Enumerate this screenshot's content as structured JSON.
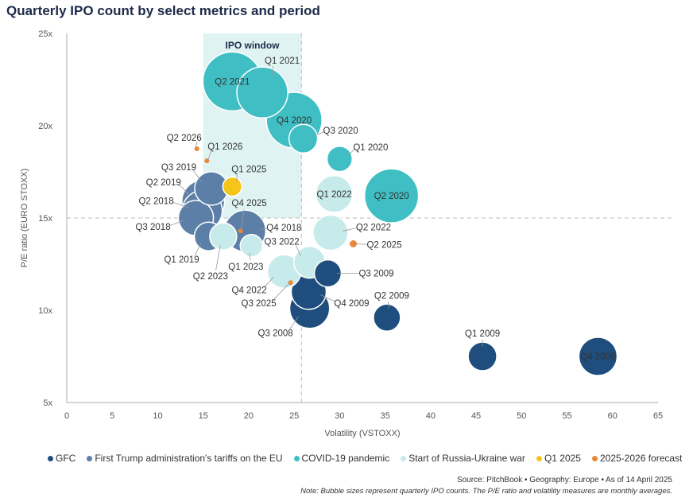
{
  "chart_data": {
    "type": "scatter",
    "title": "Quarterly IPO count by select metrics and period",
    "xlabel": "Volatility (VSTOXX)",
    "ylabel": "P/E ratio (EURO STOXX)",
    "xlim": [
      0,
      65
    ],
    "ylim": [
      5,
      25
    ],
    "xticks": [
      "0",
      "5",
      "10",
      "15",
      "20",
      "25",
      "30",
      "35",
      "40",
      "45",
      "50",
      "55",
      "60",
      "65"
    ],
    "yticks": [
      "5x",
      "10x",
      "15x",
      "20x",
      "25x"
    ],
    "annotation": "IPO window",
    "ipo_window": {
      "x": [
        15,
        25.8
      ],
      "y": [
        15,
        25
      ]
    },
    "reference_lines": {
      "x": 25.8,
      "y": 15
    },
    "series": [
      {
        "name": "GFC",
        "color": "#1f4e7e",
        "points": [
          {
            "label": "Q3 2008",
            "x": 26.7,
            "y": 10.1,
            "size": 70
          },
          {
            "label": "Q4 2008",
            "x": 58.4,
            "y": 7.5,
            "size": 64
          },
          {
            "label": "Q1 2009",
            "x": 45.7,
            "y": 7.5,
            "size": 36
          },
          {
            "label": "Q2 2009",
            "x": 35.2,
            "y": 9.6,
            "size": 32
          },
          {
            "label": "Q3 2009",
            "x": 28.7,
            "y": 12.0,
            "size": 32
          },
          {
            "label": "Q4 2009",
            "x": 26.6,
            "y": 11.0,
            "size": 54
          }
        ]
      },
      {
        "name": "First Trump administration's tariffs on the EU",
        "color": "#5b7fa6",
        "points": [
          {
            "label": "Q2 2018",
            "x": 14.9,
            "y": 15.4,
            "size": 70
          },
          {
            "label": "Q3 2018",
            "x": 14.2,
            "y": 15.0,
            "size": 54
          },
          {
            "label": "Q4 2018",
            "x": 19.6,
            "y": 14.3,
            "size": 75
          },
          {
            "label": "Q1 2019",
            "x": 15.6,
            "y": 14.0,
            "size": 36
          },
          {
            "label": "Q2 2019",
            "x": 15.0,
            "y": 15.9,
            "size": 80
          },
          {
            "label": "Q3 2019",
            "x": 15.9,
            "y": 16.6,
            "size": 49
          }
        ]
      },
      {
        "name": "COVID-19 pandemic",
        "color": "#3fbfc4",
        "points": [
          {
            "label": "Q1 2020",
            "x": 30.0,
            "y": 18.2,
            "size": 28
          },
          {
            "label": "Q2 2020",
            "x": 35.7,
            "y": 16.2,
            "size": 128
          },
          {
            "label": "Q3 2020",
            "x": 26.0,
            "y": 19.3,
            "size": 36
          },
          {
            "label": "Q4 2020",
            "x": 25.0,
            "y": 20.3,
            "size": 136
          },
          {
            "label": "Q1 2021",
            "x": 21.5,
            "y": 21.8,
            "size": 114
          },
          {
            "label": "Q2 2021",
            "x": 18.2,
            "y": 22.4,
            "size": 152
          }
        ]
      },
      {
        "name": "Start of Russia-Ukraine war",
        "color": "#c6ebea",
        "points": [
          {
            "label": "Q1 2022",
            "x": 29.4,
            "y": 16.3,
            "size": 59
          },
          {
            "label": "Q2 2022",
            "x": 29.0,
            "y": 14.2,
            "size": 54
          },
          {
            "label": "Q3 2022",
            "x": 26.7,
            "y": 12.6,
            "size": 44
          },
          {
            "label": "Q4 2022",
            "x": 23.9,
            "y": 12.1,
            "size": 49
          },
          {
            "label": "Q1 2023",
            "x": 20.3,
            "y": 13.5,
            "size": 22
          },
          {
            "label": "Q2 2023",
            "x": 17.2,
            "y": 14.0,
            "size": 32
          }
        ]
      },
      {
        "name": "Q1 2025",
        "color": "#f5c518",
        "points": [
          {
            "label": "Q1 2025",
            "x": 18.2,
            "y": 16.7,
            "size": 16
          }
        ]
      },
      {
        "name": "2025-2026 forecast",
        "color": "#e8883a",
        "points": [
          {
            "label": "Q2 2025",
            "x": 31.5,
            "y": 13.6,
            "size": 3
          },
          {
            "label": "Q3 2025",
            "x": 24.6,
            "y": 11.5,
            "size": 1
          },
          {
            "label": "Q4 2025",
            "x": 19.1,
            "y": 14.3,
            "size": 1
          },
          {
            "label": "Q1 2026",
            "x": 15.4,
            "y": 18.1,
            "size": 1
          },
          {
            "label": "Q2 2026",
            "x": 14.3,
            "y": 18.75,
            "size": 1
          }
        ]
      }
    ],
    "legend_position": "bottom"
  },
  "source": "Source: PitchBook  •  Geography: Europe  •  As of 14 April 2025",
  "note": "Note: Bubble sizes represent quarterly IPO counts. The P/E ratio and volatility measures are monthly averages."
}
